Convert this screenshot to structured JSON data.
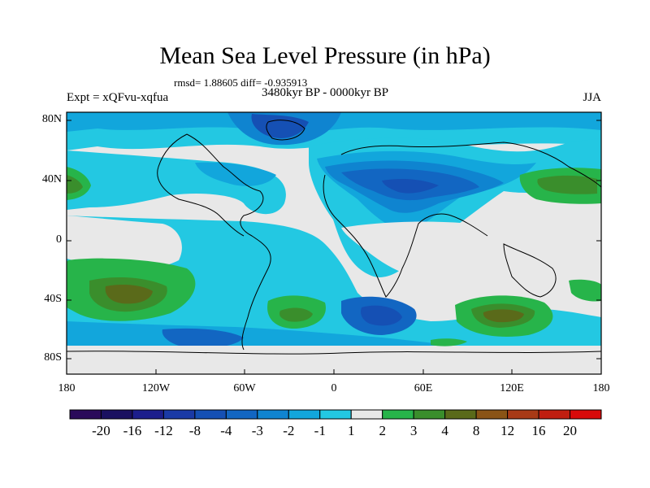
{
  "title": "Mean Sea Level Pressure (in hPa)",
  "stats": "rmsd= 1.88605 diff= -0.935913",
  "period": "3480kyr BP - 0000kyr BP",
  "experiment": "Expt = xQFvu-xqfua",
  "season": "JJA",
  "lat_ticks": [
    "80N",
    "40N",
    "0",
    "40S",
    "80S"
  ],
  "lon_ticks": [
    "180",
    "120W",
    "60W",
    "0",
    "60E",
    "120E",
    "180"
  ],
  "colorbar": {
    "labels": [
      "-20",
      "-16",
      "-12",
      "-8",
      "-4",
      "-3",
      "-2",
      "-1",
      "1",
      "2",
      "3",
      "4",
      "8",
      "12",
      "16",
      "20"
    ],
    "colors": [
      "#1a1060",
      "#1c1e8c",
      "#1a3aa6",
      "#1550b4",
      "#1266c2",
      "#0f84d0",
      "#12a6dc",
      "#23c8e2",
      "#e8e8e8",
      "#27b44a",
      "#3a8e2c",
      "#5a6a1a",
      "#8a5416",
      "#a83a16",
      "#c01e10",
      "#d80a0a"
    ]
  },
  "colors": {
    "ocean_neutral": "#e8e8e8",
    "coast": "#000000"
  }
}
